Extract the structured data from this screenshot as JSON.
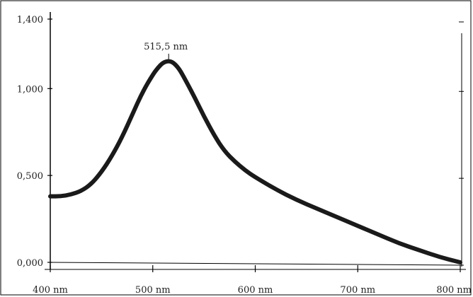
{
  "chart_data": {
    "type": "line",
    "title": "",
    "xlabel": "",
    "ylabel": "",
    "xlim": [
      400,
      800
    ],
    "ylim": [
      0,
      1.4
    ],
    "grid": false,
    "x_tick_labels": [
      "400 nm",
      "500 nm",
      "600 nm",
      "700 nm",
      "800 nm"
    ],
    "x_tick_values": [
      400,
      500,
      600,
      700,
      800
    ],
    "y_tick_labels": [
      "0,000",
      "0,500",
      "1,000",
      "1,400"
    ],
    "y_tick_values": [
      0,
      0.5,
      1.0,
      1.4
    ],
    "series": [
      {
        "color": "#1a1a1a",
        "x": [
          400,
          410,
          420,
          430,
          440,
          450,
          460,
          470,
          480,
          490,
          500,
          505,
          510,
          515.5,
          520,
          525,
          530,
          540,
          550,
          560,
          570,
          580,
          590,
          600,
          620,
          640,
          660,
          680,
          700,
          720,
          740,
          760,
          780,
          800
        ],
        "y": [
          0.38,
          0.38,
          0.39,
          0.41,
          0.45,
          0.52,
          0.61,
          0.72,
          0.85,
          0.98,
          1.08,
          1.12,
          1.15,
          1.16,
          1.15,
          1.12,
          1.07,
          0.96,
          0.84,
          0.73,
          0.64,
          0.58,
          0.53,
          0.49,
          0.42,
          0.36,
          0.31,
          0.26,
          0.21,
          0.16,
          0.11,
          0.07,
          0.03,
          0.0
        ]
      }
    ],
    "annotations": [
      {
        "text": "515,5 nm",
        "x": 515.5,
        "y": 1.16
      }
    ]
  }
}
